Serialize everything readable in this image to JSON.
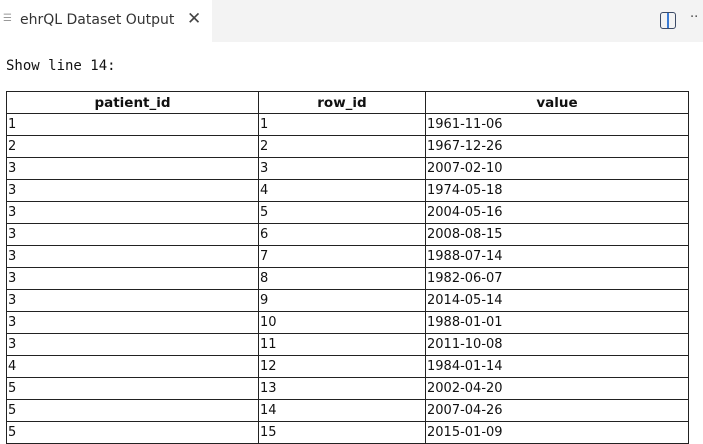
{
  "tab": {
    "title": "ehrQL Dataset Output",
    "menu_icon": "lines-icon",
    "close_icon": "close-icon"
  },
  "toolbar": {
    "split_icon": "split-editor-icon",
    "more_label": "··"
  },
  "content": {
    "heading": "Show line 14:"
  },
  "table": {
    "columns": [
      "patient_id",
      "row_id",
      "value"
    ],
    "rows": [
      [
        "1",
        "1",
        "1961-11-06"
      ],
      [
        "2",
        "2",
        "1967-12-26"
      ],
      [
        "3",
        "3",
        "2007-02-10"
      ],
      [
        "3",
        "4",
        "1974-05-18"
      ],
      [
        "3",
        "5",
        "2004-05-16"
      ],
      [
        "3",
        "6",
        "2008-08-15"
      ],
      [
        "3",
        "7",
        "1988-07-14"
      ],
      [
        "3",
        "8",
        "1982-06-07"
      ],
      [
        "3",
        "9",
        "2014-05-14"
      ],
      [
        "3",
        "10",
        "1988-01-01"
      ],
      [
        "3",
        "11",
        "2011-10-08"
      ],
      [
        "4",
        "12",
        "1984-01-14"
      ],
      [
        "5",
        "13",
        "2002-04-20"
      ],
      [
        "5",
        "14",
        "2007-04-26"
      ],
      [
        "5",
        "15",
        "2015-01-09"
      ]
    ]
  }
}
